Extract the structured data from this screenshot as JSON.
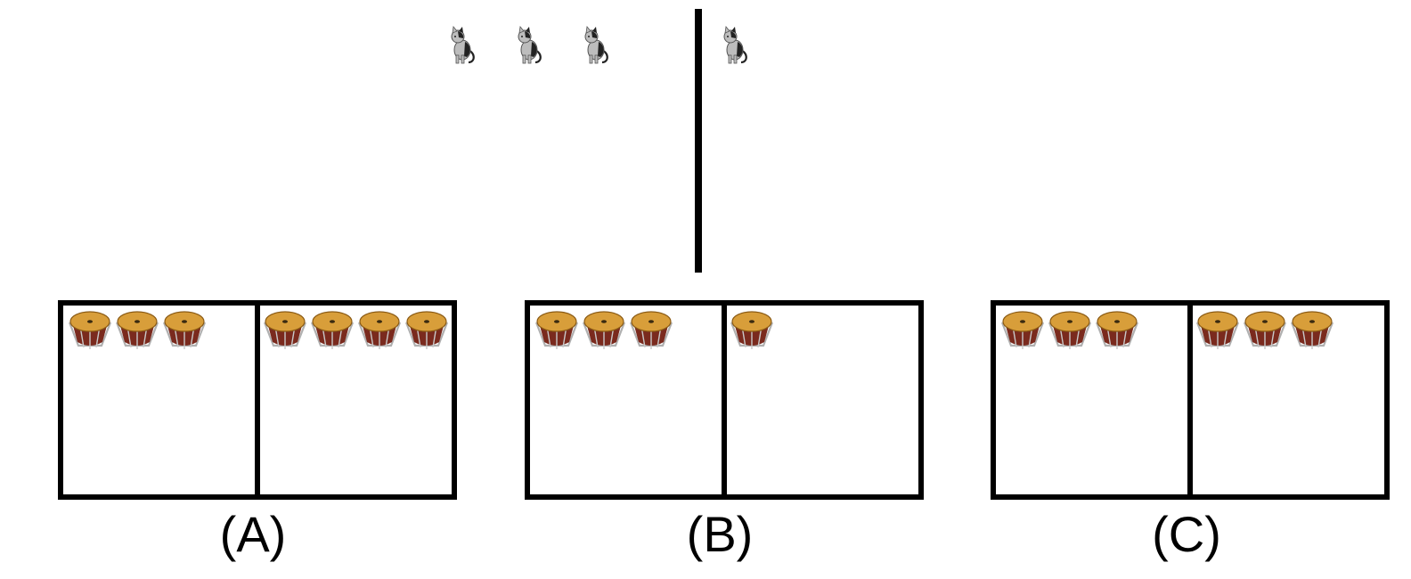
{
  "question": {
    "left_cat_count": 3,
    "right_cat_count": 1,
    "cat_icon": "cat-icon",
    "divider": "vertical-divider"
  },
  "options": [
    {
      "label": "(A)",
      "left_drum_count": 3,
      "right_drum_count": 4
    },
    {
      "label": "(B)",
      "left_drum_count": 3,
      "right_drum_count": 1
    },
    {
      "label": "(C)",
      "left_drum_count": 3,
      "right_drum_count": 3
    }
  ],
  "drum_icon": "drum-icon",
  "colors": {
    "drum_head": "#D89E3A",
    "drum_body": "#7A2A1E",
    "drum_frame": "#B0B0B0",
    "cat_light": "#BDBDBD",
    "cat_dark": "#222222",
    "line": "#000000"
  }
}
